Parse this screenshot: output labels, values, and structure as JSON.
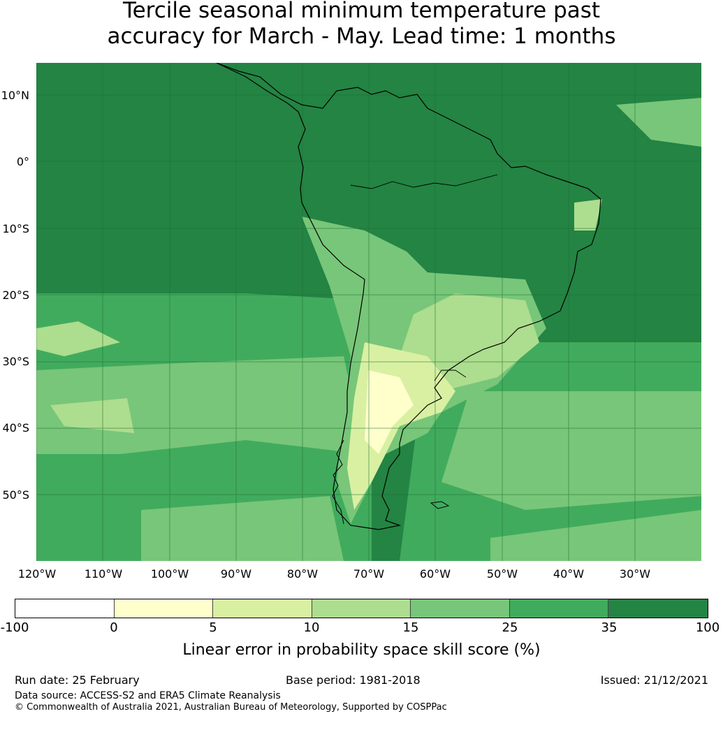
{
  "title": {
    "line1": "Tercile seasonal minimum temperature past",
    "line2": "accuracy for March - May. Lead time: 1 months"
  },
  "map": {
    "latitude_labels": [
      "10°N",
      "0°",
      "10°S",
      "20°S",
      "30°S",
      "40°S",
      "50°S"
    ],
    "longitude_labels": [
      "120°W",
      "110°W",
      "100°W",
      "90°W",
      "80°W",
      "70°W",
      "60°W",
      "50°W",
      "40°W",
      "30°W"
    ],
    "land_outline_icon": "coastline-outline",
    "palette": {
      "lt0": "#ffffff",
      "0-5": "#ffffcc",
      "5-10": "#d9f0a3",
      "10-15": "#addd8e",
      "15-25": "#78c679",
      "25-35": "#41ab5d",
      "35-100": "#238443"
    }
  },
  "colorbar": {
    "ticks": [
      "-100",
      "0",
      "5",
      "10",
      "15",
      "25",
      "35",
      "100"
    ],
    "colors": [
      "#ffffff",
      "#ffffcc",
      "#d9f0a3",
      "#addd8e",
      "#78c679",
      "#41ab5d",
      "#238443"
    ],
    "label": "Linear error in probability space skill score (%)"
  },
  "footer": {
    "run_date": "Run date: 25 February",
    "base_period": "Base period: 1981-2018",
    "issued": "Issued: 21/12/2021",
    "data_source": "Data source: ACCESS-S2 and ERA5 Climate Reanalysis",
    "copyright": "© Commonwealth of Australia 2021, Australian Bureau of Meteorology, Supported by COSPPac"
  }
}
